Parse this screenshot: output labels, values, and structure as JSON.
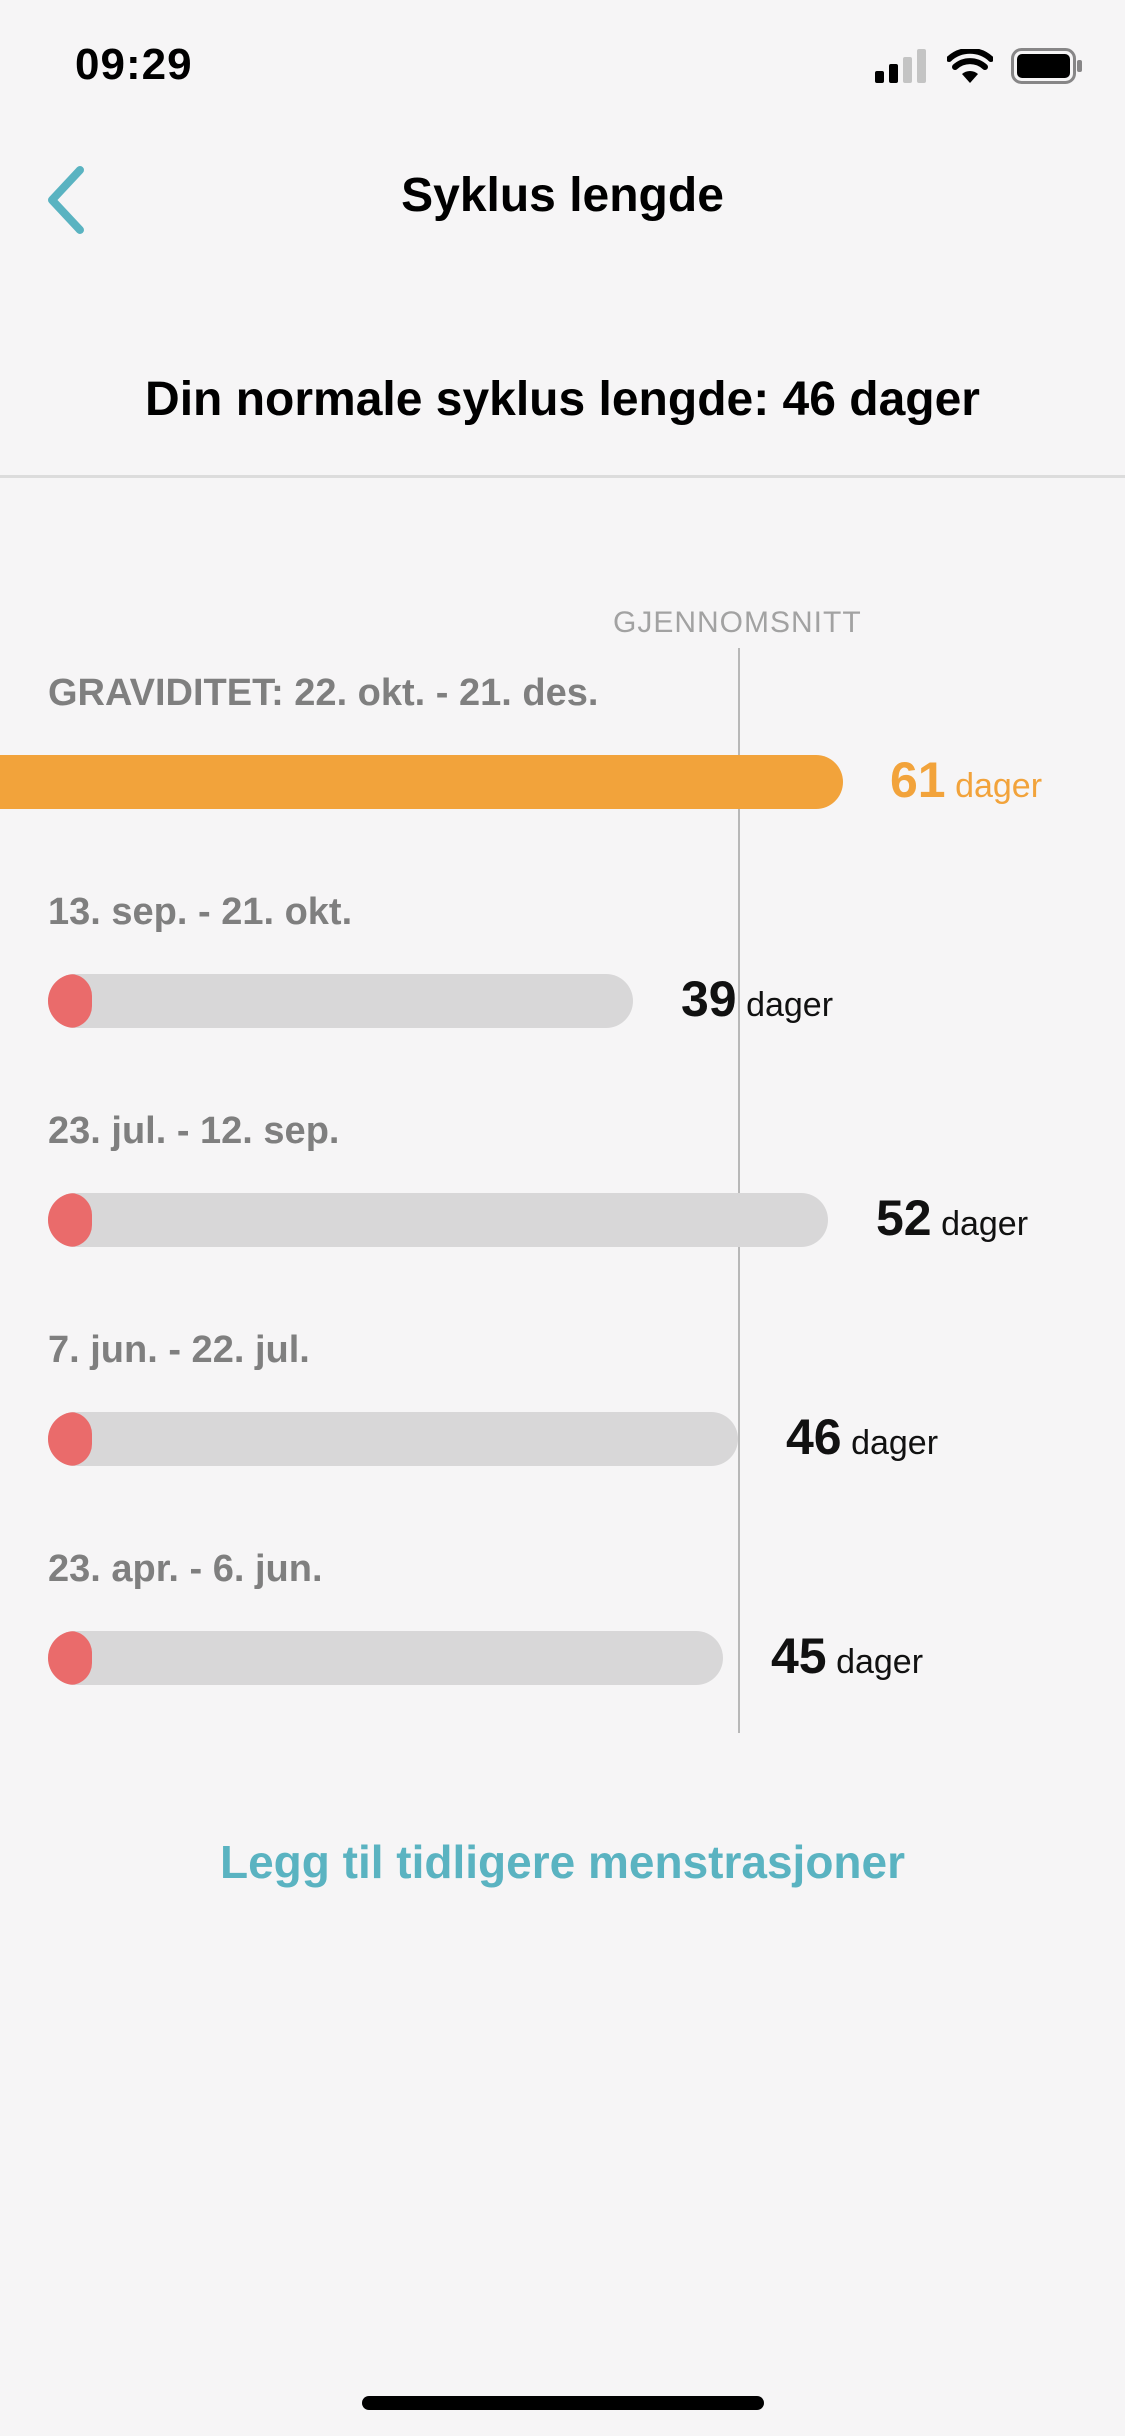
{
  "status_bar": {
    "time": "09:29"
  },
  "nav": {
    "title": "Syklus lengde"
  },
  "summary": "Din normale syklus lengde: 46 dager",
  "chart": {
    "average_label": "GJENNOMSNITT"
  },
  "colors": {
    "accent": "#5ab3c1",
    "highlight": "#f2a33b",
    "period": "#ea6b6b",
    "bar": "#d8d7d8"
  },
  "cycles": [
    {
      "label": "GRAVIDITET: 22. okt. - 21. des.",
      "days": "61",
      "unit": "dager",
      "pregnancy": true
    },
    {
      "label": "13. sep. - 21. okt.",
      "days": "39",
      "unit": "dager"
    },
    {
      "label": "23. jul. - 12. sep.",
      "days": "52",
      "unit": "dager"
    },
    {
      "label": "7. jun. - 22. jul.",
      "days": "46",
      "unit": "dager"
    },
    {
      "label": "23. apr. - 6. jun.",
      "days": "45",
      "unit": "dager"
    }
  ],
  "add_link": "Legg til tidligere menstrasjoner"
}
